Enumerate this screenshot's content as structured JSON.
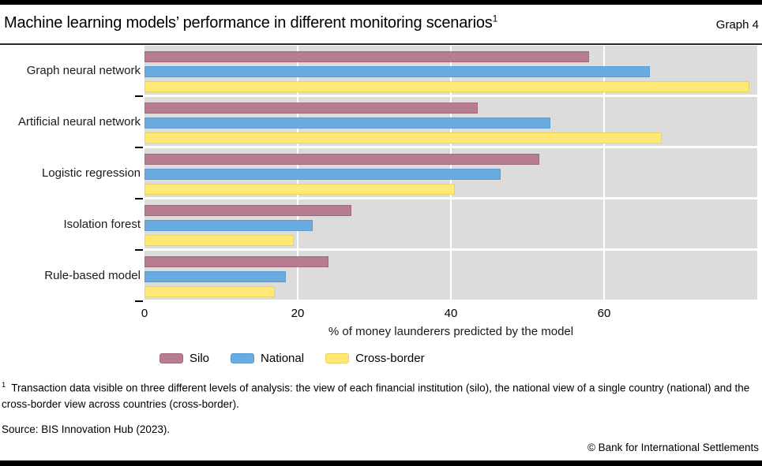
{
  "header": {
    "title": "Machine learning models’ performance in different monitoring scenarios",
    "title_superscript": "1",
    "graph_label": "Graph 4"
  },
  "chart_data": {
    "type": "bar",
    "orientation": "horizontal",
    "categories": [
      "Graph neural network",
      "Artificial neural network",
      "Logistic regression",
      "Isolation forest",
      "Rule-based model"
    ],
    "series": [
      {
        "name": "Silo",
        "color": "#b57d8e",
        "border_color": "#a06b7c",
        "values": [
          58,
          43.5,
          51.5,
          27,
          24
        ]
      },
      {
        "name": "National",
        "color": "#6aace0",
        "border_color": "#5b9bcf",
        "values": [
          66,
          53,
          46.5,
          22,
          18.5
        ]
      },
      {
        "name": "Cross-border",
        "color": "#ffe873",
        "border_color": "#e8d45e",
        "values": [
          79,
          67.5,
          40.5,
          19.5,
          17
        ]
      }
    ],
    "xlabel": "% of money launderers predicted by the model",
    "x_ticks": [
      0,
      20,
      40,
      60
    ],
    "xlim": [
      0,
      80
    ],
    "plot_background": "#dcdcdc",
    "gridline_color": "#ffffff",
    "grid": "vertical white lines at ticks",
    "legend_position": "bottom"
  },
  "footnote": {
    "marker": "1",
    "text": "Transaction data visible on three different levels of analysis: the view of each financial institution (silo), the national view of a single country (national) and the cross-border view across countries (cross-border)."
  },
  "source": "Source: BIS Innovation Hub (2023).",
  "copyright": "© Bank for International Settlements"
}
